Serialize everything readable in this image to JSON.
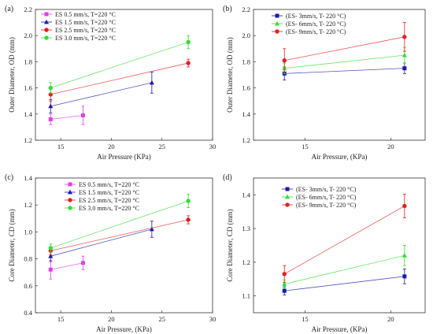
{
  "chart_data": [
    {
      "panel": "(a)",
      "type": "line",
      "xlabel": "Air Pressure (KPa)",
      "ylabel": "Outer Diameter, OD (mm)",
      "xlim": [
        12.5,
        30
      ],
      "ylim": [
        1.2,
        2.2
      ],
      "xticks": [
        15,
        20,
        25,
        30
      ],
      "yticks": [
        1.2,
        1.4,
        1.6,
        1.8,
        2.0,
        2.2
      ],
      "grid": false,
      "legend_position": "top-left",
      "series": [
        {
          "name": "ES 0.5 mm/s, T=220 °C",
          "color": "#e040e0",
          "marker": "square",
          "x": [
            14.0,
            17.2
          ],
          "y": [
            1.36,
            1.39
          ],
          "err": [
            0.04,
            0.07
          ]
        },
        {
          "name": "ES 1.5 mm/s, T=220 °C",
          "color": "#1a1aa8",
          "marker": "triangle",
          "x": [
            14.0,
            24.0
          ],
          "y": [
            1.46,
            1.64
          ],
          "err": [
            0.05,
            0.08
          ]
        },
        {
          "name": "ES 2.5 mm/s, T=220 °C",
          "color": "#e02020",
          "marker": "circle",
          "x": [
            14.0,
            27.6
          ],
          "y": [
            1.55,
            1.79
          ],
          "err": [
            0.05,
            0.03
          ]
        },
        {
          "name": "ES 3.0 mm/s, T=220 °C",
          "color": "#33dd33",
          "marker": "circle",
          "x": [
            14.0,
            27.6
          ],
          "y": [
            1.6,
            1.95
          ],
          "err": [
            0.04,
            0.05
          ]
        }
      ]
    },
    {
      "panel": "(b)",
      "type": "line",
      "xlabel": "Air Pressure, (KPa)",
      "ylabel": "Outer Diameter, OD (mm)",
      "xlim": [
        12,
        22
      ],
      "ylim": [
        1.2,
        2.2
      ],
      "xticks": [
        15,
        20
      ],
      "yticks": [
        1.2,
        1.4,
        1.6,
        1.8,
        2.0,
        2.2
      ],
      "grid": false,
      "legend_position": "top-left",
      "series": [
        {
          "name": "(ES- 3mm/s, T- 220 °C)",
          "color": "#1a1aa8",
          "marker": "square",
          "x": [
            13.8,
            20.8
          ],
          "y": [
            1.71,
            1.75
          ],
          "err": [
            0.05,
            0.04
          ]
        },
        {
          "name": "(ES- 6mm/s, T- 220 °C)",
          "color": "#33dd33",
          "marker": "triangle",
          "x": [
            13.8,
            20.8
          ],
          "y": [
            1.75,
            1.85
          ],
          "err": [
            0.04,
            0.06
          ]
        },
        {
          "name": "(ES- 9mm/s, T- 220 °C)",
          "color": "#e02020",
          "marker": "circle",
          "x": [
            13.8,
            20.8
          ],
          "y": [
            1.81,
            1.99
          ],
          "err": [
            0.09,
            0.11
          ]
        }
      ]
    },
    {
      "panel": "(c)",
      "type": "line",
      "xlabel": "Air Pressure, (KPa)",
      "ylabel": "Core Diameter, CD (mm)",
      "xlim": [
        12.5,
        30
      ],
      "ylim": [
        0.4,
        1.4
      ],
      "xticks": [
        15,
        20,
        25,
        30
      ],
      "yticks": [
        0.4,
        0.6,
        0.8,
        1.0,
        1.2,
        1.4
      ],
      "grid": false,
      "legend_position": "top-left",
      "series": [
        {
          "name": "ES 0.5 mm/s, T=220 °C",
          "color": "#e040e0",
          "marker": "square",
          "x": [
            14.0,
            17.2
          ],
          "y": [
            0.72,
            0.77
          ],
          "err": [
            0.07,
            0.05
          ]
        },
        {
          "name": "ES 1.5 mm/s, T=220 °C",
          "color": "#1a1aa8",
          "marker": "triangle",
          "x": [
            14.0,
            24.0
          ],
          "y": [
            0.82,
            1.02
          ],
          "err": [
            0.04,
            0.06
          ]
        },
        {
          "name": "ES 2.5 mm/s, T=220 °C",
          "color": "#e02020",
          "marker": "circle",
          "x": [
            14.0,
            27.6
          ],
          "y": [
            0.86,
            1.09
          ],
          "err": [
            0.03,
            0.03
          ]
        },
        {
          "name": "ES 3.0 mm/s, T=220 °C",
          "color": "#33dd33",
          "marker": "circle",
          "x": [
            14.0,
            27.6
          ],
          "y": [
            0.88,
            1.23
          ],
          "err": [
            0.03,
            0.05
          ]
        }
      ]
    },
    {
      "panel": "(d)",
      "type": "line",
      "xlabel": "Air Pressure, (KPa)",
      "ylabel": "Core Diameter, CD (mm)",
      "xlim": [
        12,
        22
      ],
      "ylim": [
        1.05,
        1.45
      ],
      "xticks": [
        15,
        20
      ],
      "yticks": [
        1.1,
        1.2,
        1.3,
        1.4
      ],
      "grid": false,
      "legend_position": "top-left",
      "series": [
        {
          "name": "(ES- 3mm/s, T- 220 °C)",
          "color": "#1a1aa8",
          "marker": "square",
          "x": [
            13.8,
            20.8
          ],
          "y": [
            1.115,
            1.158
          ],
          "err": [
            0.012,
            0.022
          ]
        },
        {
          "name": "(ES- 6mm/s, T- 220 °C)",
          "color": "#33dd33",
          "marker": "triangle",
          "x": [
            13.8,
            20.8
          ],
          "y": [
            1.135,
            1.22
          ],
          "err": [
            0.012,
            0.03
          ]
        },
        {
          "name": "(ES- 9mm/s, T- 220 °C)",
          "color": "#e02020",
          "marker": "circle",
          "x": [
            13.8,
            20.8
          ],
          "y": [
            1.165,
            1.367
          ],
          "err": [
            0.025,
            0.035
          ]
        }
      ]
    }
  ]
}
